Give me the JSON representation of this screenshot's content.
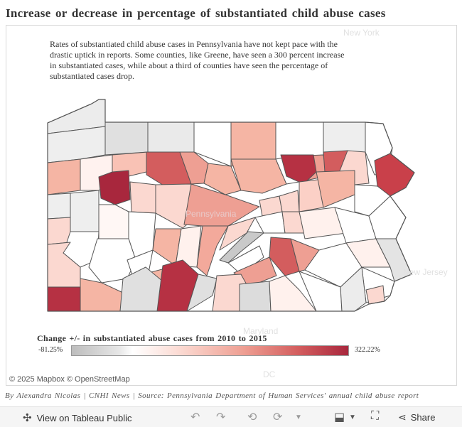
{
  "title": "Increase or decrease in percentage of substantiated child abuse cases",
  "description": "Rates of substantiated child abuse cases in Pennsylvania have not kept pace with the drastic uptick in reports. Some counties, like Greene, have seen a 300 percent increase in substantiated cases, while about a third of counties have seen the percentage of substantiated cases drop.",
  "map": {
    "labels": {
      "new_york": "New York",
      "new_jersey": "New Jersey",
      "maryland": "Maryland",
      "dc": "DC",
      "pennsylvania": "Pennsylvania"
    },
    "attribution": "© 2025 Mapbox © OpenStreetMap"
  },
  "legend": {
    "title": "Change +/- in substantiated abuse cases from 2010 to 2015",
    "min_label": "-81.25%",
    "max_label": "322.22%",
    "min_value": -81.25,
    "max_value": 322.22
  },
  "byline": "By Alexandra Nicolas | CNHI News | Source: Pennsylvania Department of Human Services' annual child abuse report",
  "toolbar": {
    "view_label": "View on Tableau Public",
    "share_label": "Share"
  },
  "colors": {
    "decrease": "#bdbdbd",
    "neutral": "#ffffff",
    "increase": "#a8273d",
    "border": "#555555"
  }
}
